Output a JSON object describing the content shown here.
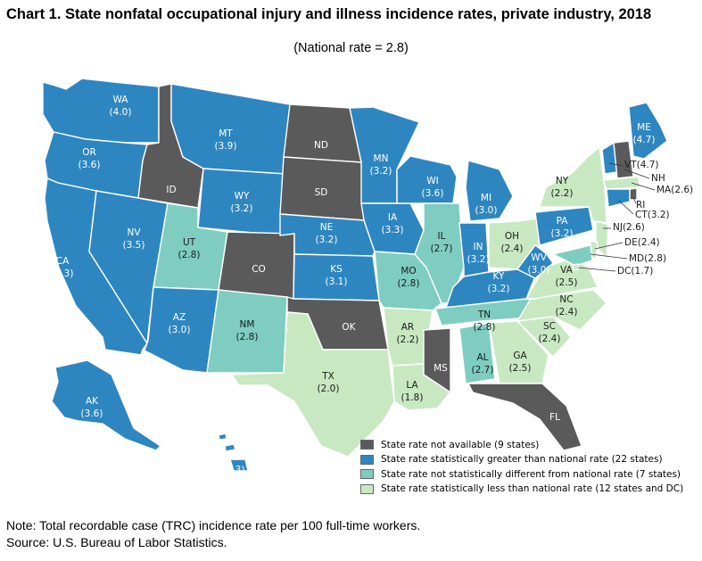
{
  "title": "Chart 1. State nonfatal occupational injury and illness incidence rates, private industry, 2018",
  "subtitle": "(National rate = 2.8)",
  "colors": {
    "na": "#5a5a5a",
    "greater": "#2e86c1",
    "nsd": "#7fcdc1",
    "less": "#c8e8c2"
  },
  "legend": [
    {
      "category": "na",
      "label": "State rate not available (9 states)"
    },
    {
      "category": "greater",
      "label": "State rate statistically greater than national rate (22 states)"
    },
    {
      "category": "nsd",
      "label": "State rate not statistically different from national rate (7 states)"
    },
    {
      "category": "less",
      "label": "State rate statistically less than national rate (12 states and DC)"
    }
  ],
  "states": [
    {
      "abbr": "WA",
      "rate": "4.0",
      "category": "greater"
    },
    {
      "abbr": "OR",
      "rate": "3.6",
      "category": "greater"
    },
    {
      "abbr": "CA",
      "rate": "3.3",
      "category": "greater"
    },
    {
      "abbr": "ID",
      "rate": "",
      "category": "na"
    },
    {
      "abbr": "NV",
      "rate": "3.5",
      "category": "greater"
    },
    {
      "abbr": "MT",
      "rate": "3.9",
      "category": "greater"
    },
    {
      "abbr": "WY",
      "rate": "3.2",
      "category": "greater"
    },
    {
      "abbr": "UT",
      "rate": "2.8",
      "category": "nsd"
    },
    {
      "abbr": "AZ",
      "rate": "3.0",
      "category": "greater"
    },
    {
      "abbr": "CO",
      "rate": "",
      "category": "na"
    },
    {
      "abbr": "NM",
      "rate": "2.8",
      "category": "nsd"
    },
    {
      "abbr": "ND",
      "rate": "",
      "category": "na"
    },
    {
      "abbr": "SD",
      "rate": "",
      "category": "na"
    },
    {
      "abbr": "NE",
      "rate": "3.2",
      "category": "greater"
    },
    {
      "abbr": "KS",
      "rate": "3.1",
      "category": "greater"
    },
    {
      "abbr": "OK",
      "rate": "",
      "category": "na"
    },
    {
      "abbr": "TX",
      "rate": "2.0",
      "category": "less"
    },
    {
      "abbr": "MN",
      "rate": "3.2",
      "category": "greater"
    },
    {
      "abbr": "IA",
      "rate": "3.3",
      "category": "greater"
    },
    {
      "abbr": "MO",
      "rate": "2.8",
      "category": "nsd"
    },
    {
      "abbr": "AR",
      "rate": "2.2",
      "category": "less"
    },
    {
      "abbr": "LA",
      "rate": "1.8",
      "category": "less"
    },
    {
      "abbr": "WI",
      "rate": "3.6",
      "category": "greater"
    },
    {
      "abbr": "IL",
      "rate": "2.7",
      "category": "nsd"
    },
    {
      "abbr": "MI",
      "rate": "3.0",
      "category": "greater"
    },
    {
      "abbr": "IN",
      "rate": "3.2",
      "category": "greater"
    },
    {
      "abbr": "OH",
      "rate": "2.4",
      "category": "less"
    },
    {
      "abbr": "KY",
      "rate": "3.2",
      "category": "greater"
    },
    {
      "abbr": "TN",
      "rate": "2.8",
      "category": "nsd"
    },
    {
      "abbr": "MS",
      "rate": "",
      "category": "na"
    },
    {
      "abbr": "AL",
      "rate": "2.7",
      "category": "nsd"
    },
    {
      "abbr": "GA",
      "rate": "2.5",
      "category": "less"
    },
    {
      "abbr": "FL",
      "rate": "",
      "category": "na"
    },
    {
      "abbr": "SC",
      "rate": "2.4",
      "category": "less"
    },
    {
      "abbr": "NC",
      "rate": "2.4",
      "category": "less"
    },
    {
      "abbr": "VA",
      "rate": "2.5",
      "category": "less"
    },
    {
      "abbr": "WV",
      "rate": "3.0",
      "category": "greater"
    },
    {
      "abbr": "PA",
      "rate": "3.2",
      "category": "greater"
    },
    {
      "abbr": "NY",
      "rate": "2.2",
      "category": "less"
    },
    {
      "abbr": "ME",
      "rate": "4.7",
      "category": "greater"
    },
    {
      "abbr": "VT",
      "rate": "4.7",
      "category": "greater"
    },
    {
      "abbr": "NH",
      "rate": "",
      "category": "na"
    },
    {
      "abbr": "MA",
      "rate": "2.6",
      "category": "less"
    },
    {
      "abbr": "RI",
      "rate": "",
      "category": "na"
    },
    {
      "abbr": "CT",
      "rate": "3.2",
      "category": "greater"
    },
    {
      "abbr": "NJ",
      "rate": "2.6",
      "category": "less"
    },
    {
      "abbr": "DE",
      "rate": "2.4",
      "category": "less"
    },
    {
      "abbr": "MD",
      "rate": "2.8",
      "category": "nsd"
    },
    {
      "abbr": "DC",
      "rate": "1.7",
      "category": "less"
    },
    {
      "abbr": "AK",
      "rate": "3.6",
      "category": "greater"
    },
    {
      "abbr": "HI",
      "rate": "3.3",
      "category": "greater"
    }
  ],
  "note": "Note: Total recordable case (TRC) incidence rate per 100 full-time workers.",
  "source": "Source: U.S. Bureau of Labor Statistics."
}
